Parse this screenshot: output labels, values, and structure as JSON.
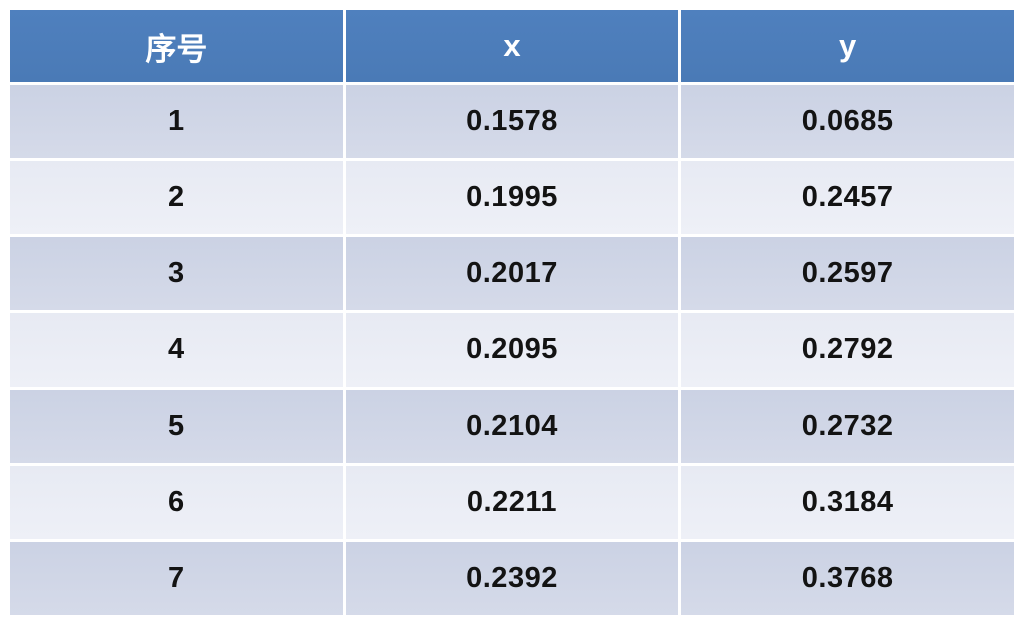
{
  "table": {
    "columns": [
      {
        "key": "index",
        "label": "序号"
      },
      {
        "key": "x",
        "label": "x"
      },
      {
        "key": "y",
        "label": "y"
      }
    ],
    "rows": [
      [
        "1",
        "0.1578",
        "0.0685"
      ],
      [
        "2",
        "0.1995",
        "0.2457"
      ],
      [
        "3",
        "0.2017",
        "0.2597"
      ],
      [
        "4",
        "0.2095",
        "0.2792"
      ],
      [
        "5",
        "0.2104",
        "0.2732"
      ],
      [
        "6",
        "0.2211",
        "0.3184"
      ],
      [
        "7",
        "0.2392",
        "0.3768"
      ]
    ]
  },
  "colors": {
    "header_bg": "#4d7dbb",
    "header_text": "#ffffff",
    "row_odd_bg": "#cfd4e6",
    "row_even_bg": "#e9ecf4",
    "body_text": "#131313",
    "separator": "#ffffff",
    "page_bg": "#ffffff"
  },
  "chart_data": {
    "type": "table",
    "title": "",
    "columns": [
      "序号",
      "x",
      "y"
    ],
    "rows": [
      [
        1,
        0.1578,
        0.0685
      ],
      [
        2,
        0.1995,
        0.2457
      ],
      [
        3,
        0.2017,
        0.2597
      ],
      [
        4,
        0.2095,
        0.2792
      ],
      [
        5,
        0.2104,
        0.2732
      ],
      [
        6,
        0.2211,
        0.3184
      ],
      [
        7,
        0.2392,
        0.3768
      ]
    ],
    "x": [
      0.1578,
      0.1995,
      0.2017,
      0.2095,
      0.2104,
      0.2211,
      0.2392
    ],
    "y": [
      0.0685,
      0.2457,
      0.2597,
      0.2792,
      0.2732,
      0.3184,
      0.3768
    ]
  }
}
